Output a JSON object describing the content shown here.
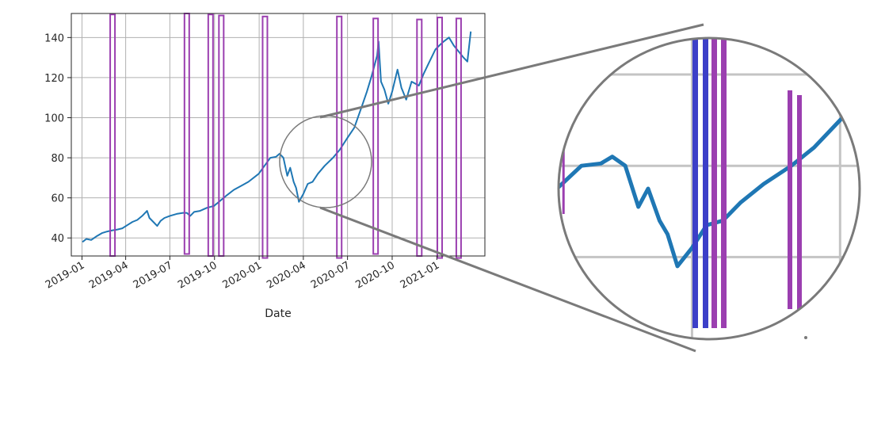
{
  "chart_data": {
    "type": "line",
    "title": "",
    "xlabel": "Date",
    "ylabel": "",
    "grid": true,
    "x_tick_labels": [
      "2019-01",
      "2019-04",
      "2019-07",
      "2019-10",
      "2020-01",
      "2020-04",
      "2020-07",
      "2020-10",
      "2021-01"
    ],
    "y_tick_labels": [
      "40",
      "60",
      "80",
      "100",
      "120",
      "140"
    ],
    "x_ticks": [
      "2019-01-01",
      "2019-04-01",
      "2019-07-01",
      "2019-10-01",
      "2020-01-01",
      "2020-04-01",
      "2020-07-01",
      "2020-10-01",
      "2021-01-01"
    ],
    "y_ticks": [
      40,
      60,
      80,
      100,
      120,
      140
    ],
    "xlim": [
      "2018-12-10",
      "2021-04-10"
    ],
    "ylim": [
      31,
      152
    ],
    "colors": {
      "line": "#1f77b4",
      "highlight": "#9b3fb0",
      "highlight_dense": "#3c3fc8",
      "lens": "#7a7a7a",
      "grid": "#b0b0b0"
    },
    "series": [
      {
        "points": [
          [
            "2019-01-02",
            38
          ],
          [
            "2019-01-10",
            39.5
          ],
          [
            "2019-01-20",
            39
          ],
          [
            "2019-02-01",
            41
          ],
          [
            "2019-02-12",
            42.5
          ],
          [
            "2019-02-22",
            43.2
          ],
          [
            "2019-03-05",
            43.8
          ],
          [
            "2019-03-15",
            44.2
          ],
          [
            "2019-03-25",
            44.8
          ],
          [
            "2019-04-05",
            46.5
          ],
          [
            "2019-04-15",
            48
          ],
          [
            "2019-04-25",
            49
          ],
          [
            "2019-05-05",
            51
          ],
          [
            "2019-05-15",
            53.5
          ],
          [
            "2019-05-20",
            50
          ],
          [
            "2019-05-28",
            48
          ],
          [
            "2019-06-05",
            46
          ],
          [
            "2019-06-12",
            48.5
          ],
          [
            "2019-06-20",
            50
          ],
          [
            "2019-07-01",
            51
          ],
          [
            "2019-07-15",
            52
          ],
          [
            "2019-07-28",
            52.5
          ],
          [
            "2019-08-05",
            52.5
          ],
          [
            "2019-08-12",
            51
          ],
          [
            "2019-08-20",
            53
          ],
          [
            "2019-09-01",
            53.5
          ],
          [
            "2019-09-15",
            55
          ],
          [
            "2019-09-30",
            56
          ],
          [
            "2019-10-10",
            58
          ],
          [
            "2019-10-25",
            61
          ],
          [
            "2019-11-10",
            64
          ],
          [
            "2019-11-25",
            66
          ],
          [
            "2019-12-10",
            68
          ],
          [
            "2019-12-31",
            72
          ],
          [
            "2020-01-15",
            77
          ],
          [
            "2020-01-24",
            80
          ],
          [
            "2020-02-05",
            80.5
          ],
          [
            "2020-02-12",
            82
          ],
          [
            "2020-02-20",
            80
          ],
          [
            "2020-02-28",
            71
          ],
          [
            "2020-03-05",
            75
          ],
          [
            "2020-03-12",
            68
          ],
          [
            "2020-03-17",
            65
          ],
          [
            "2020-03-23",
            58
          ],
          [
            "2020-04-01",
            62
          ],
          [
            "2020-04-10",
            67
          ],
          [
            "2020-04-20",
            68
          ],
          [
            "2020-05-01",
            72
          ],
          [
            "2020-05-15",
            76
          ],
          [
            "2020-06-01",
            80
          ],
          [
            "2020-06-15",
            84
          ],
          [
            "2020-07-01",
            90
          ],
          [
            "2020-07-15",
            95
          ],
          [
            "2020-07-31",
            106
          ],
          [
            "2020-08-10",
            113
          ],
          [
            "2020-08-20",
            121
          ],
          [
            "2020-08-31",
            131
          ],
          [
            "2020-09-03",
            138
          ],
          [
            "2020-09-08",
            118
          ],
          [
            "2020-09-15",
            114
          ],
          [
            "2020-09-23",
            107
          ],
          [
            "2020-10-01",
            113
          ],
          [
            "2020-10-12",
            124
          ],
          [
            "2020-10-20",
            115
          ],
          [
            "2020-10-30",
            109
          ],
          [
            "2020-11-10",
            118
          ],
          [
            "2020-11-25",
            116
          ],
          [
            "2020-12-05",
            122
          ],
          [
            "2020-12-15",
            127
          ],
          [
            "2020-12-29",
            134
          ],
          [
            "2021-01-06",
            136
          ],
          [
            "2021-01-15",
            138
          ],
          [
            "2021-01-26",
            140
          ],
          [
            "2021-02-05",
            136
          ],
          [
            "2021-02-15",
            133
          ],
          [
            "2021-02-25",
            130
          ],
          [
            "2021-03-05",
            128
          ],
          [
            "2021-03-12",
            143
          ]
        ]
      }
    ],
    "highlight_bars": [
      {
        "x": "2019-03-05",
        "y0": 31,
        "y1": 151.5
      },
      {
        "x": "2019-08-05",
        "y0": 32,
        "y1": 152
      },
      {
        "x": "2019-09-23",
        "y0": 31,
        "y1": 151.5
      },
      {
        "x": "2019-10-15",
        "y0": 31,
        "y1": 151
      },
      {
        "x": "2020-01-13",
        "y0": 30,
        "y1": 150.5
      },
      {
        "x": "2020-06-14",
        "y0": 30,
        "y1": 150.5
      },
      {
        "x": "2020-08-28",
        "y0": 32,
        "y1": 149.5
      },
      {
        "x": "2020-11-26",
        "y0": 31,
        "y1": 149
      },
      {
        "x": "2021-01-07",
        "y0": 30,
        "y1": 150
      },
      {
        "x": "2021-02-15",
        "y0": 30,
        "y1": 149.5
      }
    ]
  }
}
